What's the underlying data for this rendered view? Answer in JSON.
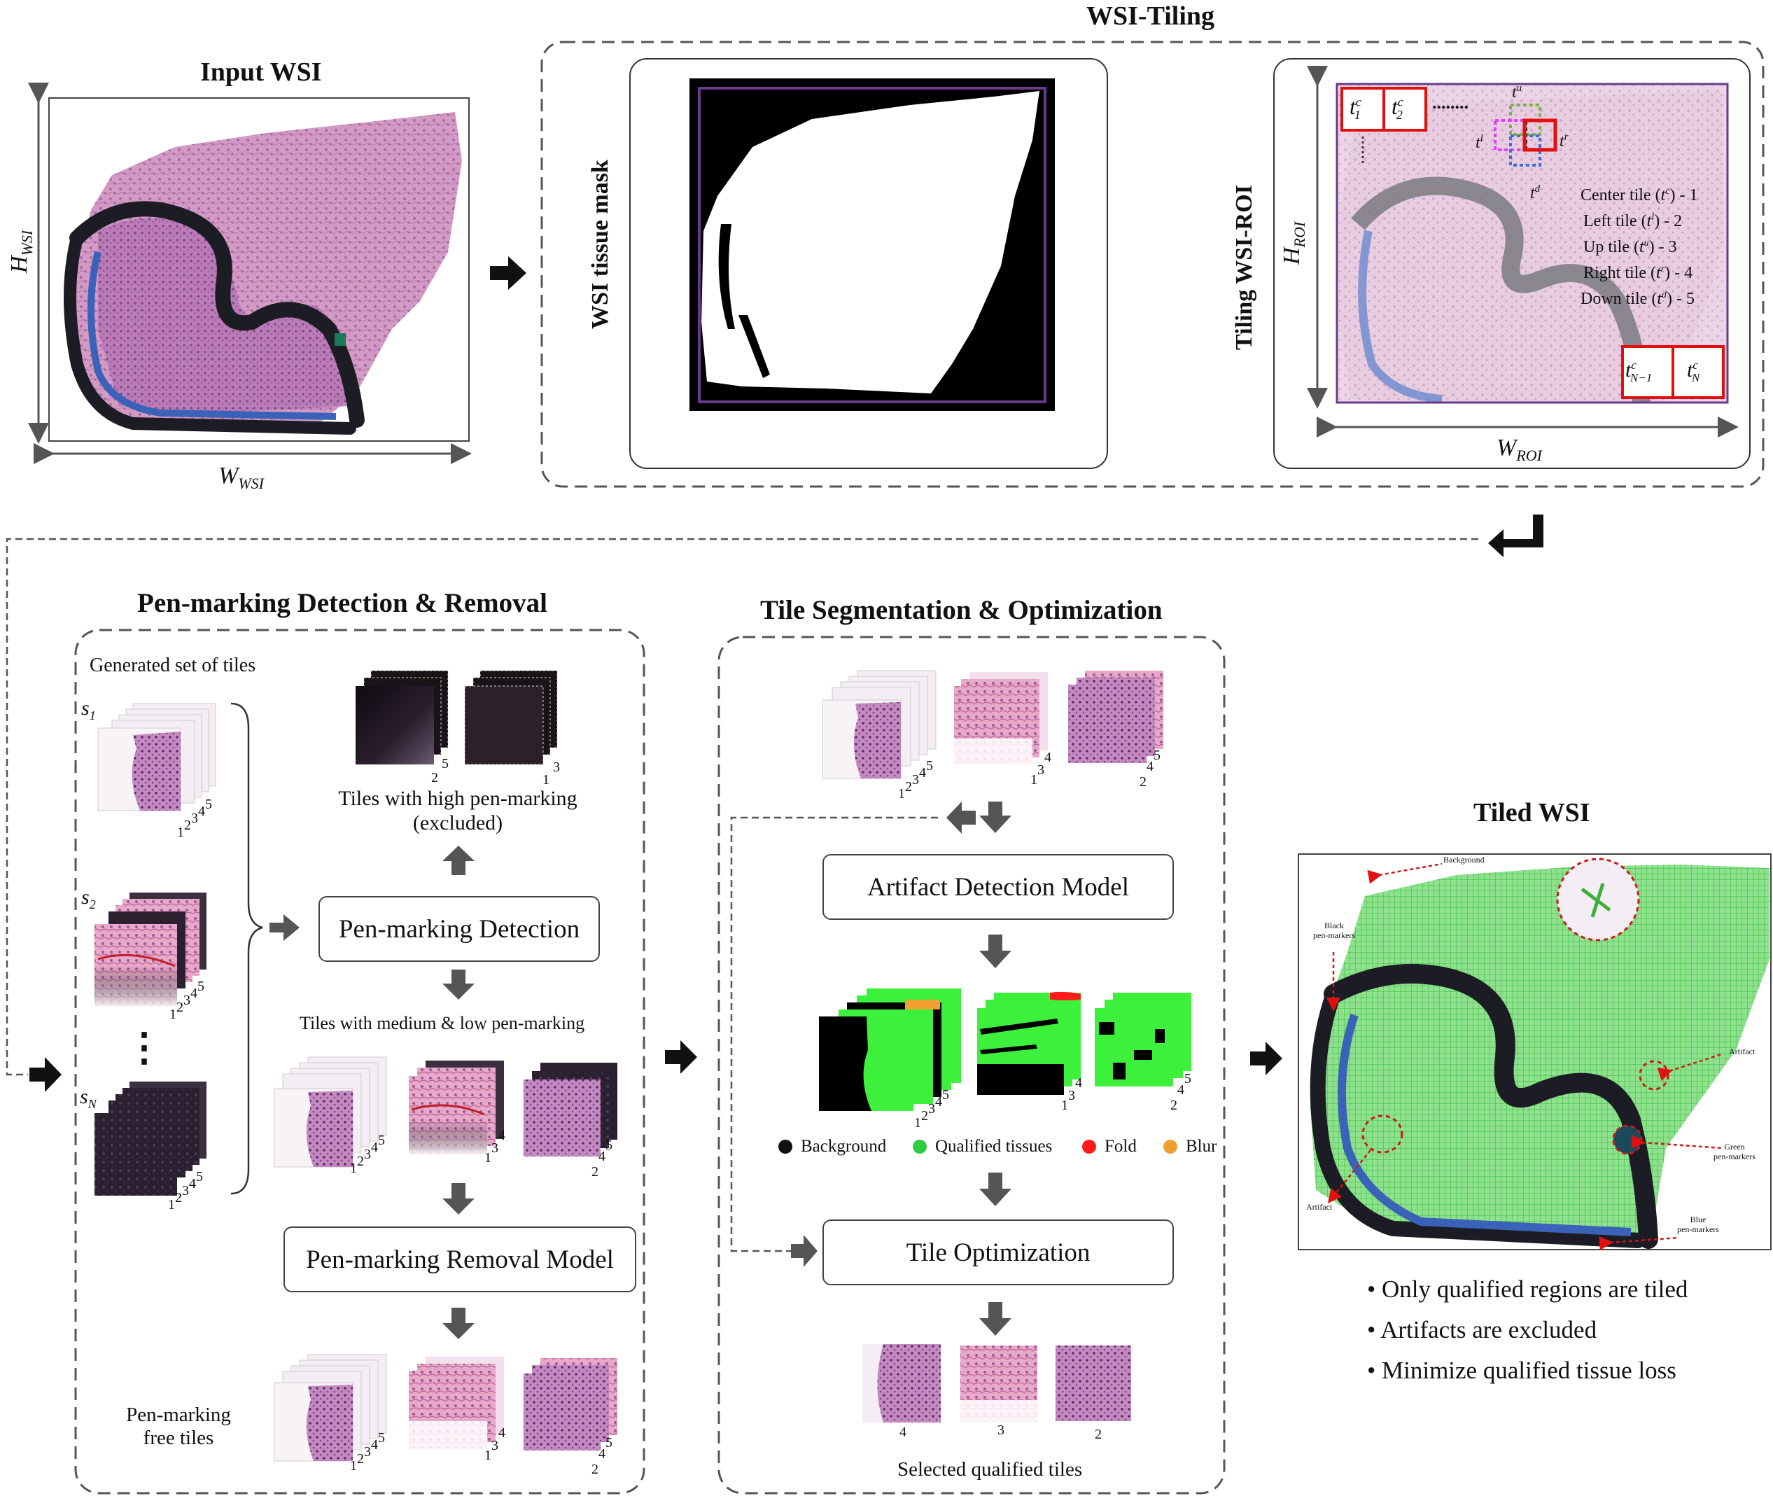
{
  "sections": {
    "input_title": "Input WSI",
    "tiling_title": "WSI-Tiling",
    "pen_title": "Pen-marking Detection & Removal",
    "seg_title": "Tile Segmentation & Optimization",
    "tiled_title": "Tiled WSI"
  },
  "axis": {
    "h_wsi": "H",
    "h_wsi_sub": "WSI",
    "w_wsi": "W",
    "w_wsi_sub": "WSI",
    "h_roi": "H",
    "h_roi_sub": "ROI",
    "w_roi": "W",
    "w_roi_sub": "ROI"
  },
  "tiling": {
    "mask_label": "WSI tissue mask",
    "roi_label": "Tiling WSI-ROI",
    "tile_t1": "t",
    "tile_t1_sup": "c",
    "tile_t1_sub": "1",
    "tile_t2": "t",
    "tile_t2_sup": "c",
    "tile_t2_sub": "2",
    "tile_tn1": "t",
    "tile_tn1_sup": "c",
    "tile_tn1_sub": "N−1",
    "tile_tn": "t",
    "tile_tn_sup": "c",
    "tile_tn_sub": "N",
    "tu": "t",
    "tu_sup": "u",
    "tl": "t",
    "tl_sup": "l",
    "tr": "t",
    "tr_sup": "r",
    "td": "t",
    "td_sup": "d",
    "dots": "........",
    "legend": [
      {
        "pre": "Center tile (",
        "t": "t",
        "sup": "c",
        "post": ") - 1"
      },
      {
        "pre": "Left tile (",
        "t": "t",
        "sup": "l",
        "post": ") - 2"
      },
      {
        "pre": "Up tile (",
        "t": "t",
        "sup": "u",
        "post": ") - 3"
      },
      {
        "pre": "Right tile (",
        "t": "t",
        "sup": "r",
        "post": ") - 4"
      },
      {
        "pre": "Down tile (",
        "t": "t",
        "sup": "d",
        "post": ") - 5"
      }
    ]
  },
  "pen": {
    "generated_label": "Generated set of tiles",
    "s1": "s",
    "s1_sub": "1",
    "s2": "s",
    "s2_sub": "2",
    "sn": "s",
    "sn_sub": "N",
    "vdots": "⋮",
    "high_label_1": "Tiles with high pen-marking",
    "high_label_2": "(excluded)",
    "detection_box": "Pen-marking Detection",
    "medium_label": "Tiles with medium & low pen-marking",
    "removal_box": "Pen-marking Removal Model",
    "free_label_1": "Pen-marking",
    "free_label_2": "free tiles"
  },
  "seg": {
    "artifact_box": "Artifact Detection Model",
    "optimization_box": "Tile Optimization",
    "selected_label": "Selected qualified tiles",
    "legend": [
      {
        "label": "Background",
        "color": "#111111"
      },
      {
        "label": "Qualified tissues",
        "color": "#2ecc40"
      },
      {
        "label": "Fold",
        "color": "#ff1a1a"
      },
      {
        "label": "Blur",
        "color": "#f0a030"
      }
    ],
    "sel_nums": [
      "4",
      "3",
      "2"
    ]
  },
  "tiled": {
    "annot_background": "Background",
    "annot_black": "Black\npen-markers",
    "annot_black_1": "Black",
    "annot_black_2": "pen-markers",
    "annot_artifact_right": "Artifact",
    "annot_green_1": "Green",
    "annot_green_2": "pen-markers",
    "annot_blue_1": "Blue",
    "annot_blue_2": "pen-markers",
    "annot_artifact_left": "Artifact",
    "bullets": [
      "• Only qualified regions are tiled",
      "• Artifacts are excluded",
      "• Minimize qualified tissue loss"
    ]
  },
  "stack_numbers": {
    "seq5": [
      "1",
      "2",
      "3",
      "4",
      "5"
    ],
    "s1": [
      "1",
      "2",
      "3",
      "4",
      "5"
    ],
    "high_a": [
      "2",
      "5"
    ],
    "high_b": [
      "1",
      "3"
    ],
    "med_a": [
      "1",
      "2",
      "3",
      "4",
      "5"
    ],
    "med_b": [
      "1",
      "3",
      "4"
    ],
    "med_c": [
      "2",
      "4",
      "5"
    ]
  },
  "colors": {
    "tissue_pink": "#d9a3c9",
    "tissue_purple": "#7a3f8a",
    "pen_black": "#1c1c24",
    "pen_blue": "#3a62b8",
    "mask_frame": "#6a3a8a",
    "tile_red": "#e01010",
    "tile_green_dash": "#7cb342",
    "tile_magenta_dash": "#e040fb",
    "tile_blue_dash": "#3b6fd6",
    "qualified_green": "#3cf03c",
    "arrow_dark": "#111111",
    "arrow_grey": "#555555"
  },
  "icons": [
    "right-arrow-icon",
    "down-arrow-icon",
    "up-arrow-icon",
    "left-arrow-icon",
    "return-arrow-icon"
  ]
}
